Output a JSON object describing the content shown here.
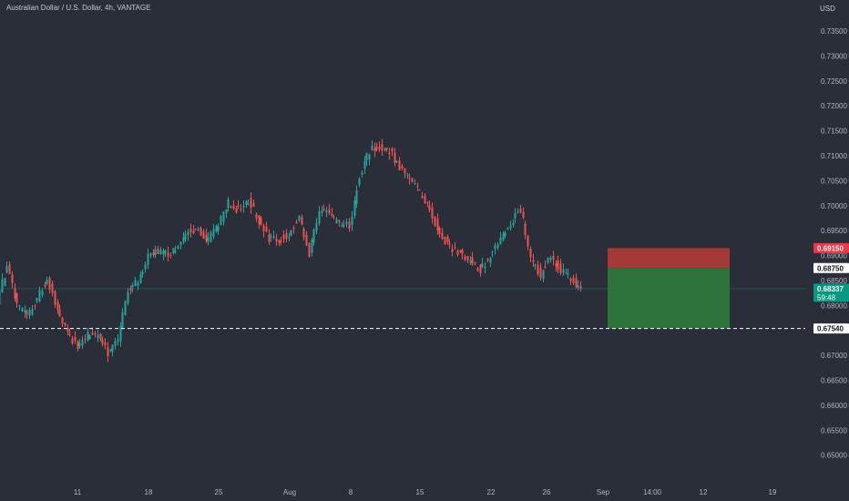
{
  "title": "Australian Dollar / U.S. Dollar, 4h, VANTAGE",
  "currency": "USD",
  "colors": {
    "background": "#2a2e39",
    "up": "#26a69a",
    "down": "#ef5350",
    "stop_zone": "#b23a3a",
    "target_zone": "#2f7a3d",
    "axis_text": "#b2b5be",
    "current_badge": "#089981",
    "stop_badge": "#f23645",
    "neutral_badge": "#ffffff"
  },
  "chart_data": {
    "type": "candlestick",
    "ylim": [
      0.6463,
      0.7372
    ],
    "y_ticks": [
      "0.73500",
      "0.73000",
      "0.72500",
      "0.72000",
      "0.71500",
      "0.71000",
      "0.70500",
      "0.70000",
      "0.69500",
      "0.69000",
      "0.68500",
      "0.68000",
      "0.67500",
      "0.67000",
      "0.66500",
      "0.66000",
      "0.65500",
      "0.65000"
    ],
    "x_ticks": [
      "11",
      "18",
      "25",
      "Aug",
      "8",
      "15",
      "22",
      "26",
      "Sep",
      "14:00",
      "12",
      "19"
    ],
    "price_path": [
      {
        "date": "Jul 05",
        "price": 0.681
      },
      {
        "date": "Jul 06",
        "price": 0.688
      },
      {
        "date": "Jul 07",
        "price": 0.68
      },
      {
        "date": "Jul 08",
        "price": 0.678
      },
      {
        "date": "Jul 09",
        "price": 0.6815
      },
      {
        "date": "Jul 10",
        "price": 0.6855
      },
      {
        "date": "Jul 11",
        "price": 0.679
      },
      {
        "date": "Jul 12",
        "price": 0.6745
      },
      {
        "date": "Jul 13",
        "price": 0.6718
      },
      {
        "date": "Jul 14",
        "price": 0.674
      },
      {
        "date": "Jul 15",
        "price": 0.674
      },
      {
        "date": "Jul 16",
        "price": 0.6705
      },
      {
        "date": "Jul 17",
        "price": 0.673
      },
      {
        "date": "Jul 18",
        "price": 0.683
      },
      {
        "date": "Jul 19",
        "price": 0.685
      },
      {
        "date": "Jul 20",
        "price": 0.69
      },
      {
        "date": "Jul 21",
        "price": 0.691
      },
      {
        "date": "Jul 22",
        "price": 0.69
      },
      {
        "date": "Jul 23",
        "price": 0.692
      },
      {
        "date": "Jul 24",
        "price": 0.695
      },
      {
        "date": "Jul 25",
        "price": 0.695
      },
      {
        "date": "Jul 26",
        "price": 0.693
      },
      {
        "date": "Jul 27",
        "price": 0.6965
      },
      {
        "date": "Jul 28",
        "price": 0.7005
      },
      {
        "date": "Jul 29",
        "price": 0.699
      },
      {
        "date": "Jul 30",
        "price": 0.701
      },
      {
        "date": "Jul 31",
        "price": 0.697
      },
      {
        "date": "Aug 01",
        "price": 0.6935
      },
      {
        "date": "Aug 02",
        "price": 0.693
      },
      {
        "date": "Aug 03",
        "price": 0.6945
      },
      {
        "date": "Aug 04",
        "price": 0.6975
      },
      {
        "date": "Aug 05",
        "price": 0.6905
      },
      {
        "date": "Aug 06",
        "price": 0.699
      },
      {
        "date": "Aug 07",
        "price": 0.6985
      },
      {
        "date": "Aug 08",
        "price": 0.696
      },
      {
        "date": "Aug 09",
        "price": 0.696
      },
      {
        "date": "Aug 10",
        "price": 0.706
      },
      {
        "date": "Aug 11",
        "price": 0.711
      },
      {
        "date": "Aug 12",
        "price": 0.712
      },
      {
        "date": "Aug 13",
        "price": 0.711
      },
      {
        "date": "Aug 14",
        "price": 0.7075
      },
      {
        "date": "Aug 15",
        "price": 0.7055
      },
      {
        "date": "Aug 16",
        "price": 0.7025
      },
      {
        "date": "Aug 17",
        "price": 0.699
      },
      {
        "date": "Aug 18",
        "price": 0.6945
      },
      {
        "date": "Aug 19",
        "price": 0.6915
      },
      {
        "date": "Aug 20",
        "price": 0.6905
      },
      {
        "date": "Aug 21",
        "price": 0.689
      },
      {
        "date": "Aug 22",
        "price": 0.687
      },
      {
        "date": "Aug 23",
        "price": 0.69
      },
      {
        "date": "Aug 24",
        "price": 0.6935
      },
      {
        "date": "Aug 25",
        "price": 0.696
      },
      {
        "date": "Aug 26",
        "price": 0.6995
      },
      {
        "date": "Aug 27",
        "price": 0.6895
      },
      {
        "date": "Aug 28",
        "price": 0.686
      },
      {
        "date": "Aug 29",
        "price": 0.69
      },
      {
        "date": "Aug 30",
        "price": 0.687
      },
      {
        "date": "Sep 01",
        "price": 0.6834
      }
    ],
    "current_price": 0.68337,
    "countdown": "59:48",
    "position": {
      "type": "short",
      "entry": 0.6875,
      "stop": 0.6915,
      "target": 0.6754
    }
  }
}
